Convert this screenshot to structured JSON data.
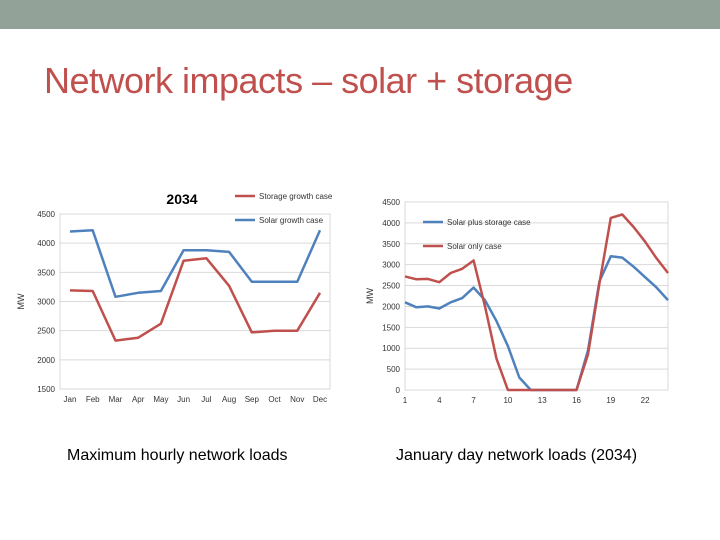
{
  "slide": {
    "title": "Network impacts – solar + storage",
    "caption_left": "Maximum hourly network loads",
    "caption_right": "January day network loads (2034)"
  },
  "colors": {
    "topbar": "#93a299",
    "title": "#c0504d",
    "red_series": "#c0504d",
    "blue_series": "#4f81bd"
  },
  "chart_data": [
    {
      "type": "line",
      "title": "2034",
      "ylabel": "MW",
      "xlabel": "",
      "categories": [
        "Jan",
        "Feb",
        "Mar",
        "Apr",
        "May",
        "Jun",
        "Jul",
        "Aug",
        "Sep",
        "Oct",
        "Nov",
        "Dec"
      ],
      "ylim": [
        1500,
        4500
      ],
      "yticks": [
        1500,
        2000,
        2500,
        3000,
        3500,
        4000,
        4500
      ],
      "grid": true,
      "legend": "top-right",
      "series": [
        {
          "name": "Storage growth case",
          "color": "#c0504d",
          "values": [
            3190,
            3180,
            2330,
            2380,
            2620,
            3700,
            3740,
            3270,
            2470,
            2500,
            2500,
            3150
          ]
        },
        {
          "name": "Solar growth case",
          "color": "#4f81bd",
          "values": [
            4200,
            4220,
            3080,
            3150,
            3180,
            3880,
            3880,
            3850,
            3340,
            3340,
            3340,
            4220
          ]
        }
      ]
    },
    {
      "type": "line",
      "title": "",
      "ylabel": "MW",
      "xlabel": "",
      "x": [
        1,
        2,
        3,
        4,
        5,
        6,
        7,
        8,
        9,
        10,
        11,
        12,
        13,
        14,
        15,
        16,
        17,
        18,
        19,
        20,
        21,
        22,
        23,
        24
      ],
      "xticks": [
        1,
        4,
        7,
        10,
        13,
        16,
        19,
        22
      ],
      "ylim": [
        0,
        4500
      ],
      "yticks": [
        0,
        500,
        1000,
        1500,
        2000,
        2500,
        3000,
        3500,
        4000,
        4500
      ],
      "grid": true,
      "legend": "top-left",
      "series": [
        {
          "name": "Solar plus storage case",
          "color": "#4f81bd",
          "values": [
            2100,
            1980,
            2000,
            1950,
            2100,
            2200,
            2450,
            2150,
            1650,
            1050,
            300,
            0,
            0,
            0,
            0,
            0,
            950,
            2600,
            3200,
            3170,
            2950,
            2700,
            2450,
            2150
          ]
        },
        {
          "name": "Solar only case",
          "color": "#c0504d",
          "values": [
            2720,
            2650,
            2660,
            2580,
            2800,
            2900,
            3100,
            2000,
            750,
            0,
            0,
            0,
            0,
            0,
            0,
            0,
            850,
            2550,
            4120,
            4200,
            3900,
            3550,
            3150,
            2800
          ]
        }
      ]
    }
  ]
}
